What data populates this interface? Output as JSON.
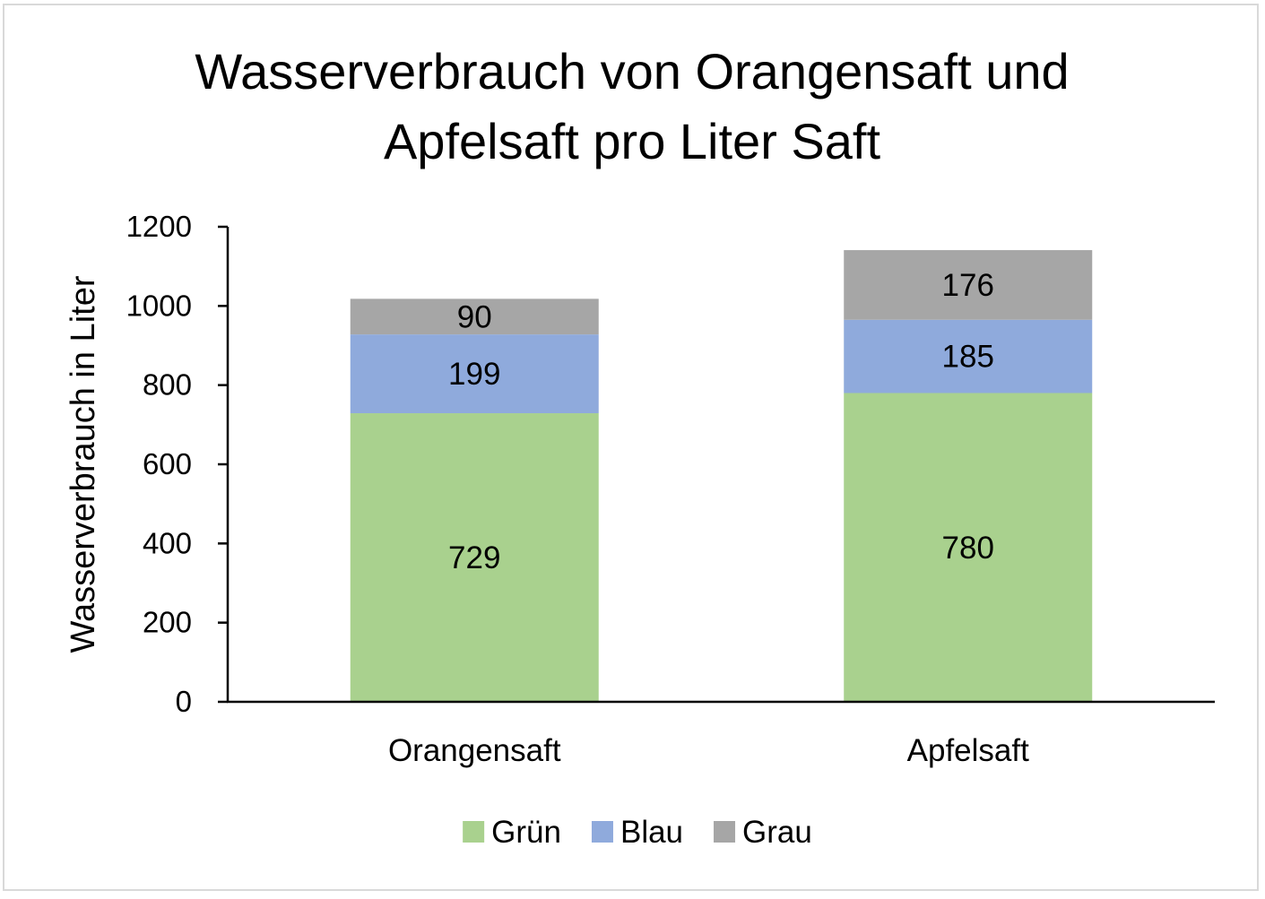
{
  "chart_data": {
    "type": "bar",
    "stacked": true,
    "title_lines": [
      "Wasserverbrauch von Orangensaft und",
      "Apfelsaft pro Liter Saft"
    ],
    "xlabel": "",
    "ylabel": "Wasserverbrauch in Liter",
    "ylim": [
      0,
      1200
    ],
    "yticks": [
      0,
      200,
      400,
      600,
      800,
      1000,
      1200
    ],
    "categories": [
      "Orangensaft",
      "Apfelsaft"
    ],
    "series": [
      {
        "name": "Grün",
        "color": "#a9d18e",
        "values": [
          729,
          780
        ]
      },
      {
        "name": "Blau",
        "color": "#8faadc",
        "values": [
          199,
          185
        ]
      },
      {
        "name": "Grau",
        "color": "#a6a6a6",
        "values": [
          90,
          176
        ]
      }
    ],
    "data_labels": true,
    "grid": false,
    "legend_position": "bottom"
  }
}
